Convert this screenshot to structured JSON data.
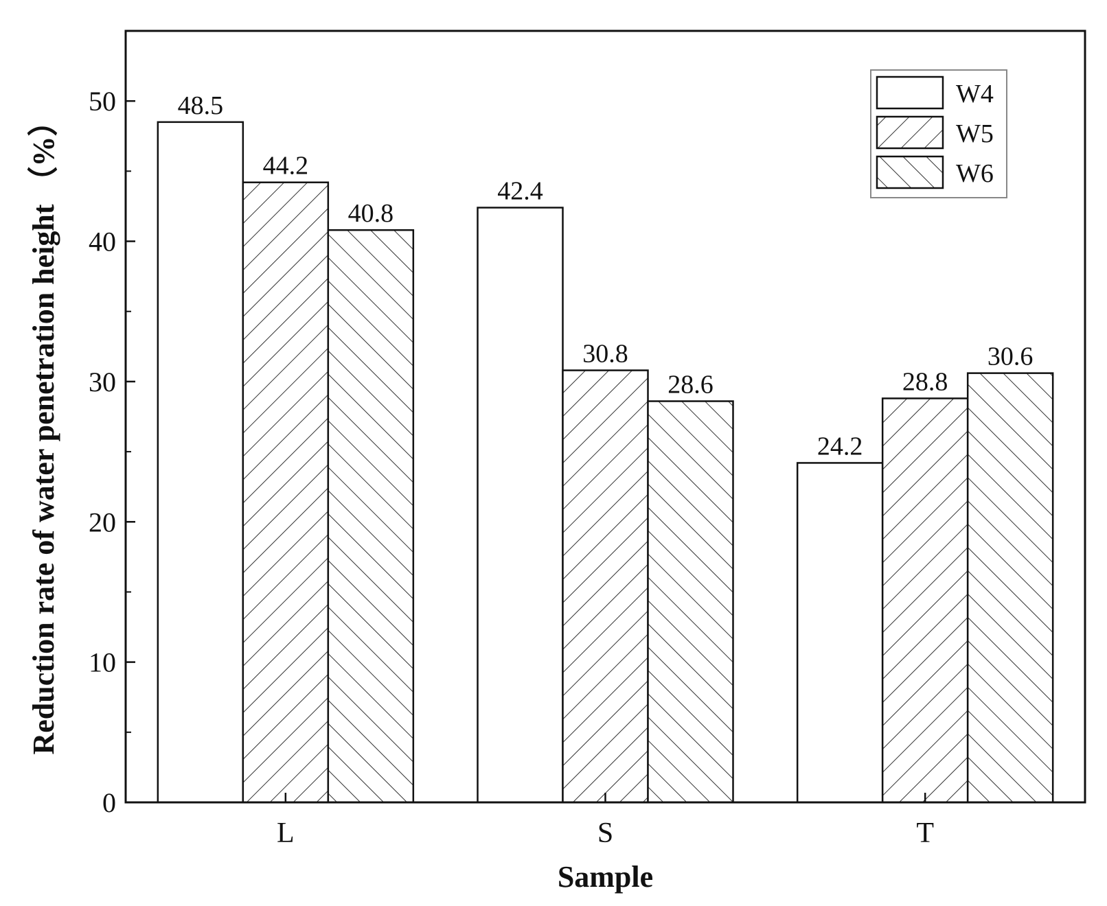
{
  "chart_data": {
    "type": "bar",
    "title": "",
    "xlabel": "Sample",
    "ylabel": "Reduction rate of water penetration height （%）",
    "categories": [
      "L",
      "S",
      "T"
    ],
    "series": [
      {
        "name": "W4",
        "pattern": "none",
        "values": [
          48.5,
          42.4,
          24.2
        ]
      },
      {
        "name": "W5",
        "pattern": "forward-diagonal",
        "values": [
          44.2,
          30.8,
          28.8
        ]
      },
      {
        "name": "W6",
        "pattern": "backward-diagonal",
        "values": [
          40.8,
          28.6,
          30.6
        ]
      }
    ],
    "data_labels": [
      [
        "48.5",
        "42.4",
        "24.2"
      ],
      [
        "44.2",
        "30.8",
        "28.8"
      ],
      [
        "40.8",
        "28.6",
        "30.6"
      ]
    ],
    "ylim": [
      0,
      55
    ],
    "yticks": [
      0,
      10,
      20,
      30,
      40,
      50
    ],
    "ytick_labels": [
      "0",
      "10",
      "20",
      "30",
      "40",
      "50"
    ],
    "grid": false,
    "legend_position": "top-right",
    "colors": {
      "stroke": "#111111",
      "fill": "#ffffff",
      "hatch": "#333333"
    }
  }
}
